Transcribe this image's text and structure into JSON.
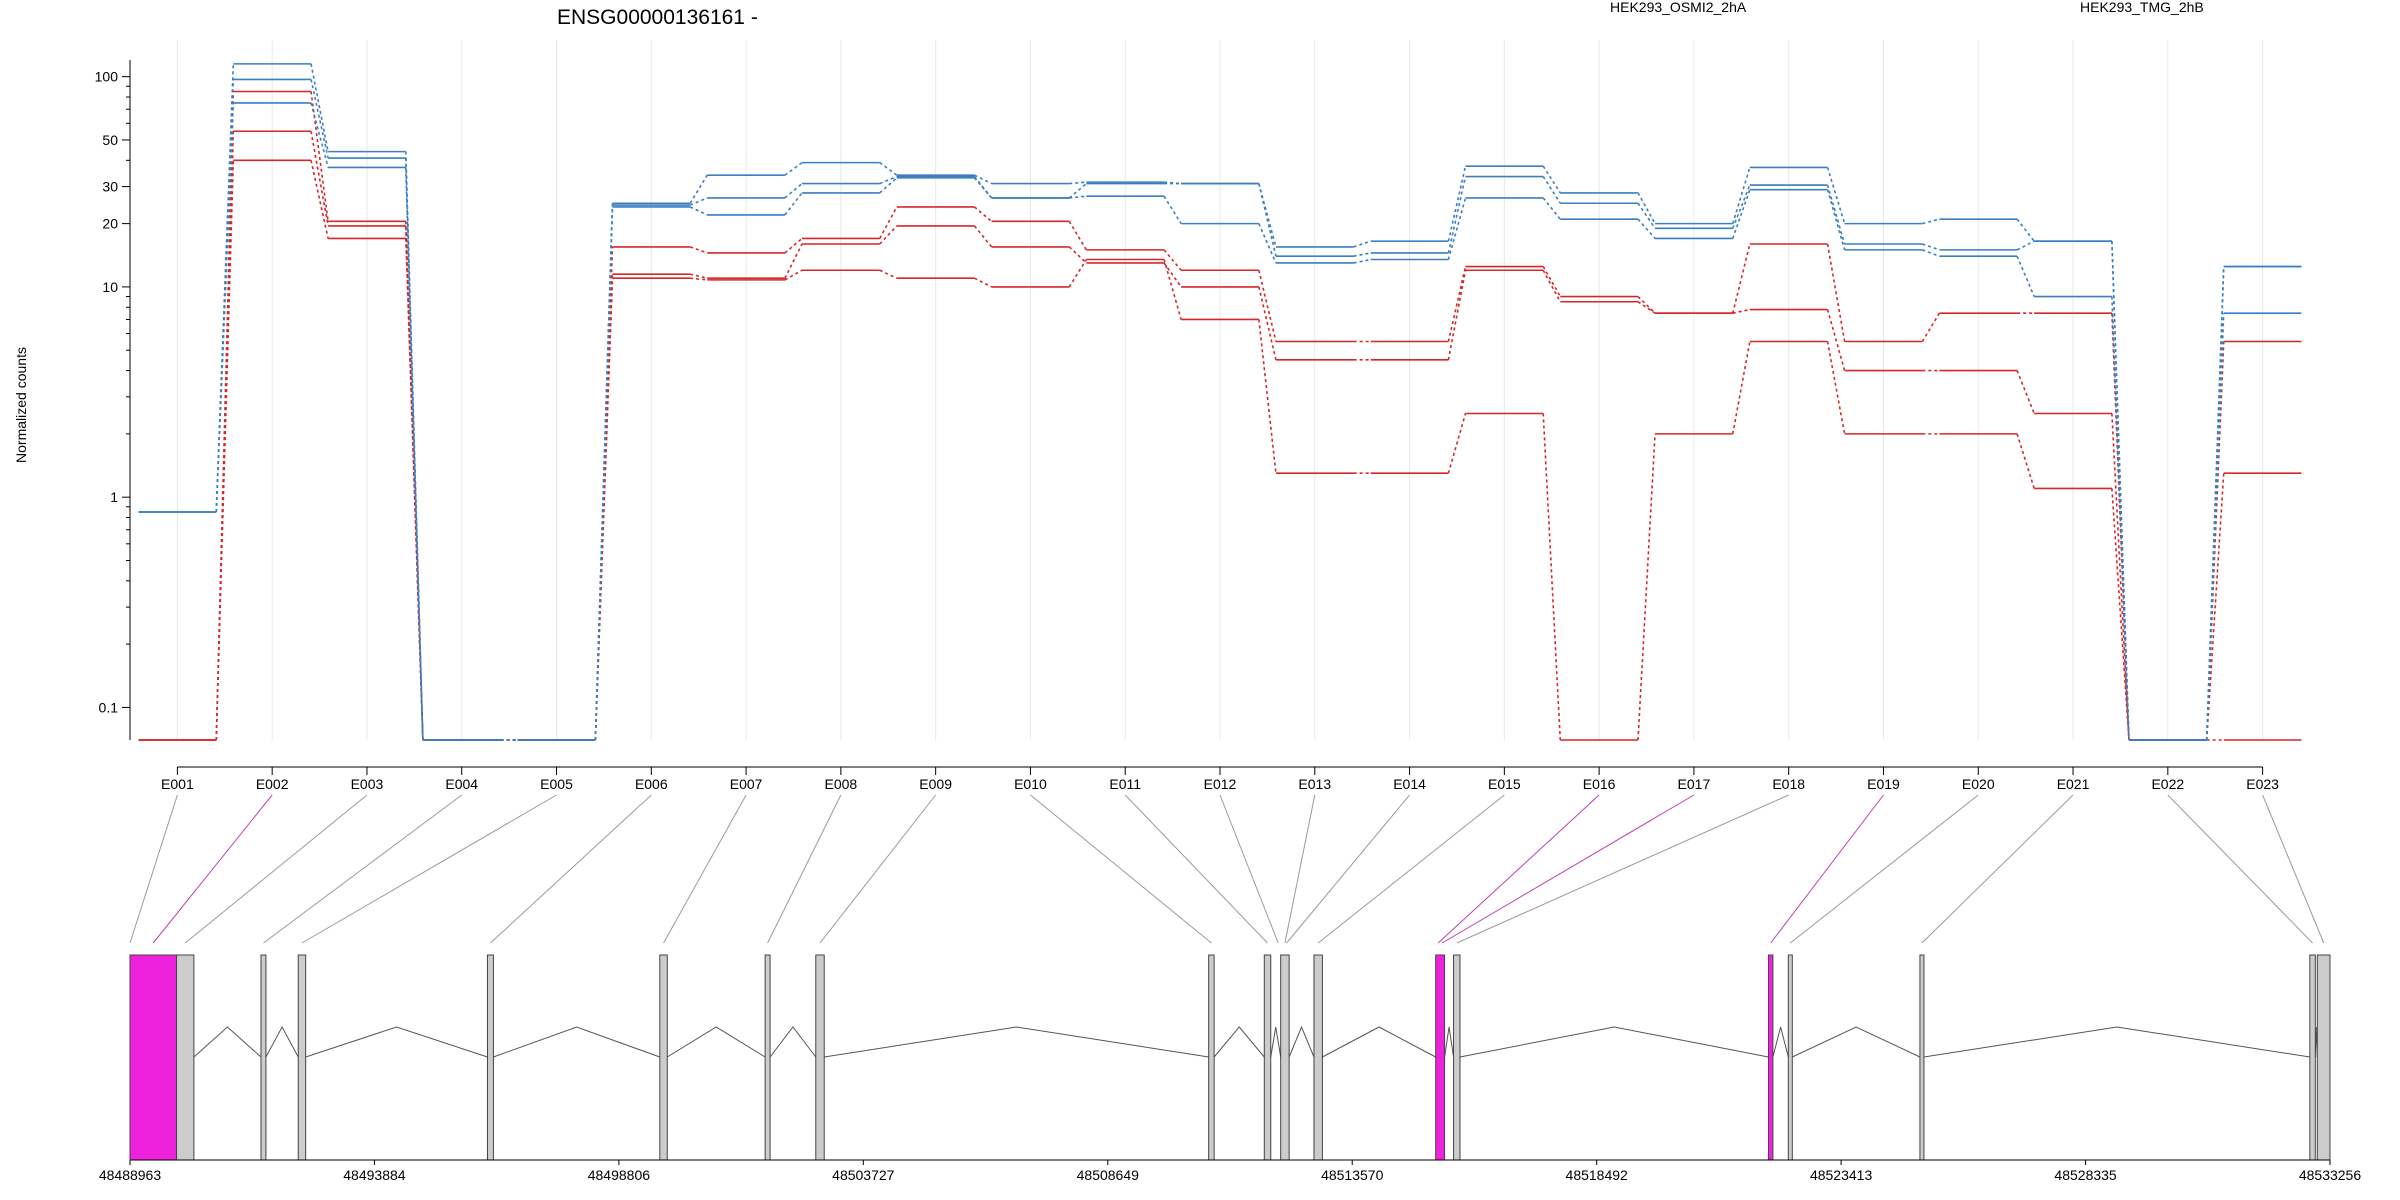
{
  "chart_data": [
    {
      "type": "line",
      "title": "ENSG00000136161 -",
      "ylabel": "Normalized counts",
      "yscale": "log",
      "ylim": [
        0.07,
        120
      ],
      "yticks": [
        "100",
        "50",
        "30",
        "20",
        "10",
        "1",
        "0.1"
      ],
      "ytick_values": [
        100,
        50,
        30,
        20,
        10,
        1,
        0.1
      ],
      "ytick_minor": [
        90,
        80,
        70,
        60,
        40,
        9,
        8,
        7,
        6,
        5,
        4,
        3,
        2,
        0.9,
        0.8,
        0.7,
        0.6,
        0.5,
        0.4,
        0.3,
        0.2
      ],
      "categories": [
        "E001",
        "E002",
        "E003",
        "E004",
        "E005",
        "E006",
        "E007",
        "E008",
        "E009",
        "E010",
        "E011",
        "E012",
        "E013",
        "E014",
        "E015",
        "E016",
        "E017",
        "E018",
        "E019",
        "E020",
        "E021",
        "E022",
        "E023"
      ],
      "groups": [
        {
          "name": "HEK293_OSMI2_2hA",
          "color": "#d62728"
        },
        {
          "name": "HEK293_TMG_2hB",
          "color": "#3a7fc1"
        }
      ],
      "series": [
        {
          "group": 0,
          "values": [
            0.07,
            85,
            20.5,
            0.07,
            0.07,
            15.5,
            14.5,
            17,
            24,
            20.5,
            15,
            12,
            5.5,
            5.5,
            12.5,
            9,
            7.5,
            16,
            5.5,
            7.5,
            7.5,
            0.07,
            5.5
          ]
        },
        {
          "group": 0,
          "values": [
            0.07,
            55,
            19.5,
            0.07,
            0.07,
            11.5,
            11,
            16,
            19.5,
            15.5,
            13,
            10,
            4.5,
            4.5,
            12,
            8.5,
            7.5,
            7.8,
            4,
            4,
            2.5,
            0.07,
            1.3
          ]
        },
        {
          "group": 0,
          "values": [
            0.07,
            40,
            17,
            0.07,
            0.07,
            11,
            10.8,
            12,
            11,
            10,
            13.5,
            7,
            1.3,
            1.3,
            2.5,
            0.07,
            2,
            5.5,
            2,
            2,
            1.1,
            0.07,
            0.07
          ]
        },
        {
          "group": 1,
          "values": [
            0.85,
            115,
            44,
            0.07,
            0.07,
            25,
            34,
            39,
            34,
            31,
            31.5,
            31,
            15.5,
            16.5,
            37.5,
            28,
            20,
            37,
            20,
            21,
            16.5,
            0.07,
            12.5
          ]
        },
        {
          "group": 1,
          "values": [
            0.85,
            97,
            41,
            0.07,
            0.07,
            24.5,
            26.5,
            31,
            33.5,
            26.5,
            31,
            31,
            14,
            14.5,
            33.5,
            25,
            19,
            30.5,
            16,
            15,
            16.5,
            0.07,
            12.5
          ]
        },
        {
          "group": 1,
          "values": [
            0.85,
            75,
            37,
            0.07,
            0.07,
            24,
            22,
            28,
            33,
            26.5,
            27,
            20,
            13,
            13.5,
            26.5,
            21,
            17,
            29,
            15,
            14,
            9,
            0.07,
            7.5
          ]
        }
      ]
    },
    {
      "type": "gene-model",
      "xtick_labels": [
        "48488963",
        "48493884",
        "48498806",
        "48503727",
        "48508649",
        "48513570",
        "48518492",
        "48523413",
        "48528335",
        "48533256"
      ],
      "xtick_values": [
        48488963,
        48493884,
        48498806,
        48503727,
        48508649,
        48513570,
        48518492,
        48523413,
        48528335,
        48533256
      ],
      "xlim": [
        48488963,
        48533256
      ],
      "highlight_color": "#ee22dd",
      "exons": [
        {
          "start": 48488963,
          "end": 48489900,
          "hl": true
        },
        {
          "start": 48489900,
          "end": 48490250,
          "hl": false
        },
        {
          "start": 48491600,
          "end": 48491700,
          "hl": false
        },
        {
          "start": 48492350,
          "end": 48492500,
          "hl": false
        },
        {
          "start": 48496160,
          "end": 48496280,
          "hl": false
        },
        {
          "start": 48499630,
          "end": 48499780,
          "hl": false
        },
        {
          "start": 48501750,
          "end": 48501850,
          "hl": false
        },
        {
          "start": 48502770,
          "end": 48502940,
          "hl": false
        },
        {
          "start": 48510680,
          "end": 48510790,
          "hl": false
        },
        {
          "start": 48511800,
          "end": 48511930,
          "hl": false
        },
        {
          "start": 48512130,
          "end": 48512300,
          "hl": false
        },
        {
          "start": 48512800,
          "end": 48512970,
          "hl": false
        },
        {
          "start": 48515250,
          "end": 48515430,
          "hl": true
        },
        {
          "start": 48515610,
          "end": 48515740,
          "hl": false
        },
        {
          "start": 48521950,
          "end": 48522040,
          "hl": true
        },
        {
          "start": 48522350,
          "end": 48522430,
          "hl": false
        },
        {
          "start": 48525000,
          "end": 48525080,
          "hl": false
        },
        {
          "start": 48532850,
          "end": 48532960,
          "hl": false
        },
        {
          "start": 48533000,
          "end": 48533256,
          "hl": false
        }
      ],
      "links": [
        {
          "exon": "E001",
          "pos": 48488963,
          "hl": false
        },
        {
          "exon": "E002",
          "pos": 48489430,
          "hl": true
        },
        {
          "exon": "E003",
          "pos": 48490075,
          "hl": false
        },
        {
          "exon": "E004",
          "pos": 48491650,
          "hl": false
        },
        {
          "exon": "E005",
          "pos": 48492425,
          "hl": false
        },
        {
          "exon": "E006",
          "pos": 48496220,
          "hl": false
        },
        {
          "exon": "E007",
          "pos": 48499705,
          "hl": false
        },
        {
          "exon": "E008",
          "pos": 48501800,
          "hl": false
        },
        {
          "exon": "E009",
          "pos": 48502855,
          "hl": false
        },
        {
          "exon": "E010",
          "pos": 48510735,
          "hl": false
        },
        {
          "exon": "E011",
          "pos": 48511865,
          "hl": false
        },
        {
          "exon": "E012",
          "pos": 48512080,
          "hl": false
        },
        {
          "exon": "E013",
          "pos": 48512215,
          "hl": false
        },
        {
          "exon": "E014",
          "pos": 48512250,
          "hl": false
        },
        {
          "exon": "E015",
          "pos": 48512885,
          "hl": false
        },
        {
          "exon": "E016",
          "pos": 48515300,
          "hl": true
        },
        {
          "exon": "E017",
          "pos": 48515380,
          "hl": true
        },
        {
          "exon": "E018",
          "pos": 48515675,
          "hl": false
        },
        {
          "exon": "E019",
          "pos": 48521995,
          "hl": true
        },
        {
          "exon": "E020",
          "pos": 48522390,
          "hl": false
        },
        {
          "exon": "E021",
          "pos": 48525040,
          "hl": false
        },
        {
          "exon": "E022",
          "pos": 48532905,
          "hl": false
        },
        {
          "exon": "E023",
          "pos": 48533130,
          "hl": false
        }
      ]
    }
  ]
}
